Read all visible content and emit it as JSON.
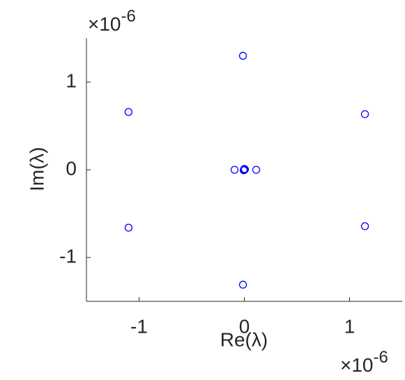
{
  "chart_data": {
    "type": "scatter",
    "x_label": "Re(λ)",
    "y_label": "Im(λ)",
    "x_multiplier": "×10",
    "x_exponent": "-6",
    "y_multiplier": "×10",
    "y_exponent": "-6",
    "series": [
      {
        "color": "#0000ff",
        "x": [
          -0.013,
          -1.1,
          1.146,
          -0.093,
          0.113,
          0,
          0.006,
          -0.006,
          0,
          -1.1,
          1.146,
          -0.013
        ],
        "values": [
          1.3,
          0.66,
          0.635,
          0,
          0,
          0,
          0.005,
          -0.005,
          0.01,
          -0.66,
          -0.643,
          -1.31
        ]
      }
    ],
    "xlim": [
      -1.5,
      1.5
    ],
    "ylim": [
      -1.5,
      1.5
    ],
    "xticks": [
      -1,
      0,
      1
    ],
    "yticks": [
      -1,
      0,
      1
    ]
  }
}
